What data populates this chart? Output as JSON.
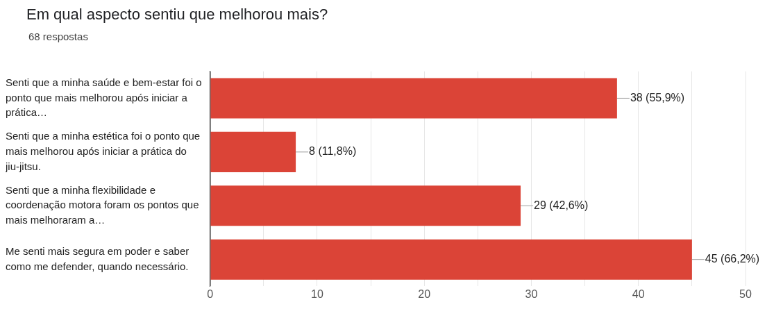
{
  "chart_data": {
    "type": "bar",
    "orientation": "horizontal",
    "title": "Em qual aspecto sentiu que melhorou mais?",
    "subtitle": "68 respostas",
    "categories": [
      "Senti que a minha saúde e bem-estar foi o ponto que mais melhorou após iniciar a prática…",
      "Senti que a minha estética foi o ponto que mais melhorou após iniciar a prática do jiu-jitsu.",
      "Senti que a minha flexibilidade e coordenação motora foram os pontos que mais melhoraram a…",
      "Me senti mais segura em poder e saber como me defender, quando necessário."
    ],
    "values": [
      38,
      8,
      29,
      45
    ],
    "value_labels": [
      "38 (55,9%)",
      "8 (11,8%)",
      "29 (42,6%)",
      "45 (66,2%)"
    ],
    "color": "#db4437",
    "xlim": [
      0,
      50
    ],
    "xticks": [
      0,
      {
        "value": 5,
        "label": null
      },
      10,
      {
        "value": 15,
        "label": null
      },
      20,
      {
        "value": 25,
        "label": null
      },
      30,
      {
        "value": 35,
        "label": null
      },
      40,
      {
        "value": 45,
        "label": null
      },
      50
    ],
    "grid": "x",
    "legend": false
  }
}
